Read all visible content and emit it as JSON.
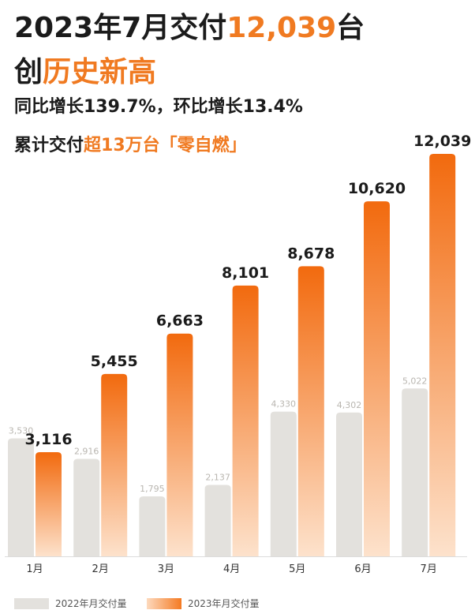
{
  "headline": {
    "line1_pre": "2023年7月交付",
    "line1_num": "12,039",
    "line1_post": "台",
    "line2_pre": "创",
    "line2_hl": "历史新高",
    "line3": "同比增长139.7%，环比增长13.4%",
    "line4_pre": "累计交付",
    "line4_hl": "超13万台「零自燃」"
  },
  "colors": {
    "accent": "#f07a21",
    "bar_2022": "#e3e1dd",
    "bar_2023_top": "#f26a0e",
    "bar_2023_bottom": "#fde2cc",
    "label_2022": "#b9b6b0",
    "text_dark": "#1b1b1b"
  },
  "chart_data": {
    "type": "bar",
    "categories": [
      "1月",
      "2月",
      "3月",
      "4月",
      "5月",
      "6月",
      "7月"
    ],
    "series": [
      {
        "name": "2022年月交付量",
        "values": [
          3530,
          2916,
          1795,
          2137,
          4330,
          4302,
          5022
        ],
        "labels": [
          "3,530",
          "2,916",
          "1,795",
          "2,137",
          "4,330",
          "4,302",
          "5,022"
        ]
      },
      {
        "name": "2023年月交付量",
        "values": [
          3116,
          5455,
          6663,
          8101,
          8678,
          10620,
          12039
        ],
        "labels": [
          "3,116",
          "5,455",
          "6,663",
          "8,101",
          "8,678",
          "10,620",
          "12,039"
        ]
      }
    ],
    "ylim": [
      0,
      12039
    ],
    "grid": false,
    "legend_position": "bottom-left"
  }
}
